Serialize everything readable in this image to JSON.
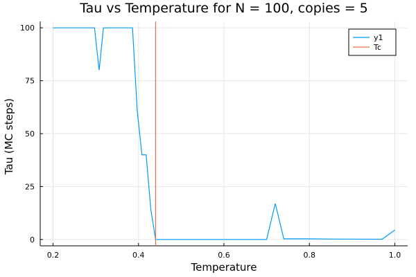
{
  "chart_data": {
    "type": "line",
    "title": "Tau vs Temperature for N = 100, copies = 5",
    "xlabel": "Temperature",
    "ylabel": "Tau (MC steps)",
    "xlim": [
      0.17,
      1.03
    ],
    "ylim": [
      -3,
      103
    ],
    "xticks": [
      0.2,
      0.4,
      0.6,
      0.8,
      1.0
    ],
    "xtick_labels": [
      "0.2",
      "0.4",
      "0.6",
      "0.8",
      "1.0"
    ],
    "yticks": [
      0,
      25,
      50,
      75,
      100
    ],
    "ytick_labels": [
      "0",
      "25",
      "50",
      "75",
      "100"
    ],
    "grid": true,
    "legend_position": "top-right",
    "series": [
      {
        "name": "y1",
        "color": "#009af9",
        "x": [
          0.2,
          0.297,
          0.308,
          0.318,
          0.386,
          0.397,
          0.408,
          0.418,
          0.429,
          0.44,
          0.5,
          0.7,
          0.72,
          0.74,
          0.8,
          0.85,
          0.97,
          1.0
        ],
        "y": [
          100,
          100,
          80,
          100,
          100,
          61,
          40,
          40,
          14,
          0,
          0,
          0,
          17,
          0.3,
          0.3,
          0.2,
          0.1,
          4.5
        ]
      },
      {
        "name": "Tc",
        "color": "#e26f46",
        "x": [
          0.44,
          0.44
        ],
        "y": [
          -3,
          103
        ]
      }
    ]
  }
}
